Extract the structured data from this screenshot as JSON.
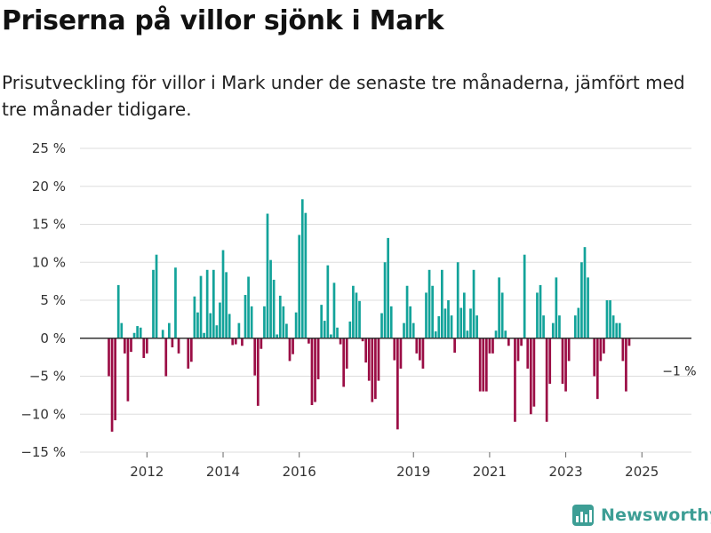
{
  "header": {
    "title": "Priserna på villor sjönk i Mark",
    "subtitle": "Prisutveckling för villor i Mark under de senaste tre månaderna, jämfört med tre månader tidigare."
  },
  "brand": {
    "name": "Newsworthy",
    "logo_icon": "bar-chart-icon",
    "color": "#3d9e95"
  },
  "colors": {
    "positive": "#13a39a",
    "negative": "#9b0d45",
    "grid": "#dddddd",
    "axis": "#333333"
  },
  "chart_data": {
    "type": "bar",
    "title": "Priserna på villor sjönk i Mark",
    "xlabel": "",
    "ylabel": "",
    "unit": "%",
    "ylim": [
      -15,
      25
    ],
    "yticks": [
      -15,
      -10,
      -5,
      0,
      5,
      10,
      15,
      20,
      25
    ],
    "ytick_labels": [
      "−15 %",
      "−10 %",
      "−5 %",
      "0 %",
      "5 %",
      "10 %",
      "15 %",
      "20 %",
      "25 %"
    ],
    "x_start": "2011-01",
    "xticks": [
      {
        "label": "2012",
        "index": 12
      },
      {
        "label": "2014",
        "index": 36
      },
      {
        "label": "2016",
        "index": 60
      },
      {
        "label": "2019",
        "index": 96
      },
      {
        "label": "2021",
        "index": 120
      },
      {
        "label": "2023",
        "index": 144
      },
      {
        "label": "2025",
        "index": 168
      }
    ],
    "values": [
      -5,
      -12.3,
      -10.8,
      7,
      2,
      -2,
      -8.3,
      -1.8,
      0.7,
      1.6,
      1.4,
      -2.6,
      -2,
      0,
      9,
      11,
      0,
      1.1,
      -5,
      2,
      -1.2,
      9.3,
      -2,
      0,
      0,
      -4,
      -3.1,
      5.5,
      3.4,
      8.2,
      0.7,
      9,
      3.3,
      9,
      1.7,
      4.7,
      11.6,
      8.7,
      3.2,
      -0.9,
      -0.8,
      2,
      -1,
      5.7,
      8.1,
      4.2,
      -4.9,
      -8.9,
      -1.4,
      4.2,
      16.4,
      10.3,
      7.7,
      0.5,
      5.6,
      4.2,
      1.9,
      -3,
      -2.1,
      3.4,
      13.6,
      18.3,
      16.5,
      -0.7,
      -8.8,
      -8.4,
      -5.4,
      4.4,
      2.3,
      9.6,
      0.5,
      7.3,
      1.4,
      -0.8,
      -6.4,
      -4,
      2.2,
      6.9,
      6,
      4.9,
      -0.4,
      -3.2,
      -5.6,
      -8.4,
      -8,
      -5.6,
      3.3,
      10,
      13.2,
      4.2,
      -2.9,
      -12,
      -4,
      2,
      6.9,
      4.2,
      2,
      -2,
      -2.9,
      -4,
      6,
      9,
      6.9,
      0.9,
      2.9,
      9,
      3.9,
      5,
      3,
      -1.9,
      10,
      4,
      6,
      1,
      3.9,
      9,
      3,
      -7,
      -7,
      -7,
      -2,
      -2,
      1,
      8,
      6,
      1,
      -1,
      0,
      -11,
      -3,
      -1,
      11,
      -4,
      -10,
      -9,
      6,
      7,
      3,
      -11,
      -6,
      2,
      8,
      3,
      -6,
      -7,
      -3,
      0,
      3,
      4,
      10,
      12,
      8,
      0,
      -5,
      -8,
      -3,
      -2,
      5,
      5,
      3,
      2,
      2,
      -3,
      -7,
      -1
    ],
    "annotation": {
      "text": "−1 %",
      "index": 177,
      "value": -1
    }
  }
}
